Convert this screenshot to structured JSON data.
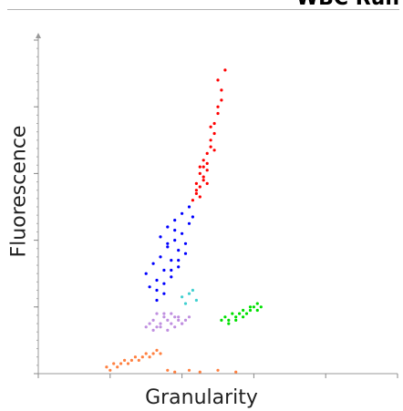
{
  "header": {
    "title": "WBC Run"
  },
  "chart_data": {
    "type": "scatter",
    "title": "WBC Run",
    "xlabel": "Granularity",
    "ylabel": "Fluorescence",
    "xlim": [
      0,
      100
    ],
    "ylim": [
      0,
      100
    ],
    "grid": false,
    "legend": "none",
    "series": [
      {
        "color": "#ff0000",
        "x": [
          43,
          44,
          44,
          45,
          45,
          46,
          46,
          47,
          47,
          48,
          45,
          46,
          47,
          44,
          48,
          49,
          49,
          50,
          50,
          51,
          51,
          50,
          52,
          48,
          46,
          45,
          47,
          49
        ],
        "y": [
          52,
          55,
          57,
          60,
          62,
          58,
          64,
          61,
          66,
          68,
          56,
          59,
          63,
          54,
          70,
          72,
          75,
          78,
          80,
          82,
          85,
          88,
          91,
          74,
          62,
          53,
          57,
          67
        ]
      },
      {
        "color": "#0000ff",
        "x": [
          30,
          32,
          33,
          34,
          35,
          36,
          37,
          38,
          39,
          40,
          41,
          42,
          33,
          35,
          37,
          39,
          41,
          34,
          36,
          38,
          40,
          42,
          31,
          33,
          35,
          37,
          39,
          43,
          36,
          38
        ],
        "y": [
          30,
          33,
          28,
          35,
          31,
          38,
          34,
          40,
          37,
          42,
          39,
          45,
          25,
          27,
          29,
          32,
          36,
          41,
          44,
          46,
          48,
          50,
          26,
          22,
          24,
          31,
          34,
          47,
          39,
          43
        ]
      },
      {
        "color": "#c090e0",
        "x": [
          30,
          31,
          32,
          33,
          34,
          35,
          36,
          37,
          38,
          39,
          40,
          41,
          42,
          32,
          34,
          36,
          38,
          40,
          33,
          35,
          37,
          39
        ],
        "y": [
          14,
          15,
          16,
          14,
          15,
          17,
          16,
          15,
          17,
          16,
          15,
          16,
          17,
          13,
          14,
          13,
          14,
          15,
          18,
          18,
          18,
          17
        ]
      },
      {
        "color": "#00e000",
        "x": [
          51,
          52,
          53,
          54,
          55,
          56,
          57,
          58,
          59,
          60,
          61,
          62,
          53,
          55,
          57,
          59,
          61
        ],
        "y": [
          16,
          17,
          16,
          18,
          17,
          18,
          19,
          18,
          19,
          20,
          19,
          20,
          15,
          16,
          17,
          20,
          21
        ]
      },
      {
        "color": "#ff8040",
        "x": [
          19,
          21,
          23,
          24,
          26,
          27,
          29,
          30,
          32,
          33,
          22,
          25,
          28,
          31,
          20,
          34,
          36,
          38,
          42,
          45,
          50,
          55
        ],
        "y": [
          2,
          3,
          3,
          4,
          4,
          5,
          5,
          6,
          6,
          7,
          2,
          3,
          4,
          5,
          1,
          6,
          1,
          0.5,
          1,
          0.5,
          1,
          0.5
        ]
      },
      {
        "color": "#40d0d0",
        "x": [
          40,
          42,
          44,
          41,
          43
        ],
        "y": [
          23,
          24,
          22,
          21,
          25
        ]
      }
    ]
  }
}
